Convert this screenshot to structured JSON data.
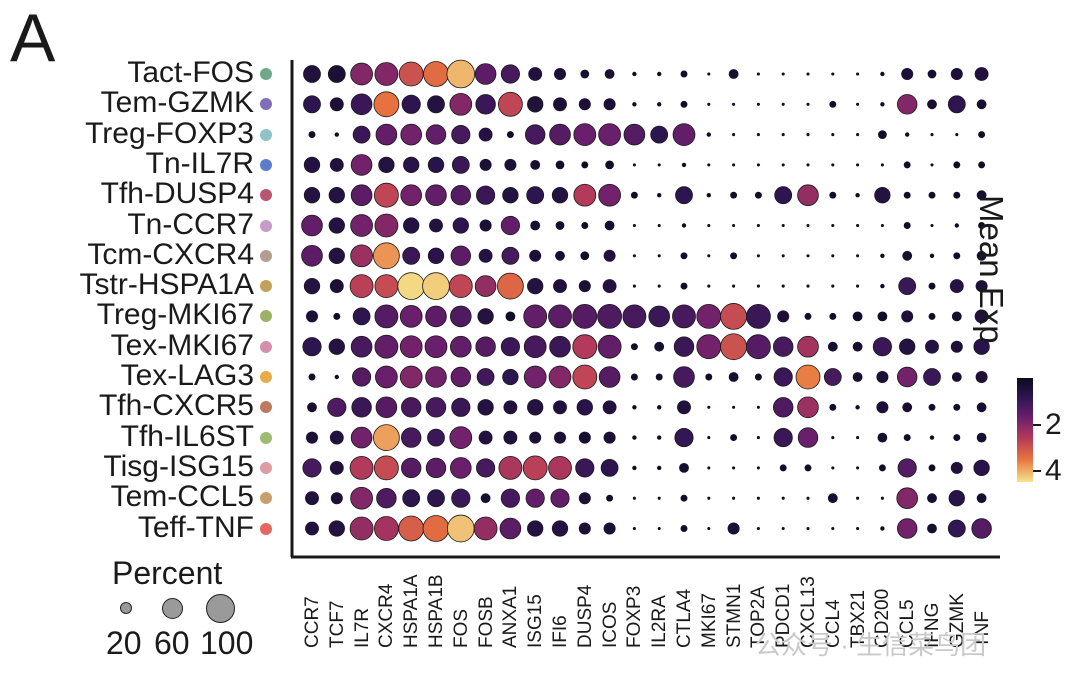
{
  "panel_label": "A",
  "legend": {
    "color_title": "Mean Exp",
    "color_ticks": [
      "2",
      "4"
    ],
    "size_title": "Percent",
    "size_ticks": [
      "20",
      "60",
      "100"
    ]
  },
  "watermark": "公众号 · 生信菜鸟团",
  "chart_data": {
    "type": "dotplot",
    "title": "",
    "genes": [
      "CCR7",
      "TCF7",
      "IL7R",
      "CXCR4",
      "HSPA1A",
      "HSPA1B",
      "FOS",
      "FOSB",
      "ANXA1",
      "ISG15",
      "IFI6",
      "DUSP4",
      "ICOS",
      "FOXP3",
      "IL2RA",
      "CTLA4",
      "MKI67",
      "STMN1",
      "TOP2A",
      "PDCD1",
      "CXCL13",
      "CCL4",
      "TBX21",
      "CD200",
      "CCL5",
      "IFNG",
      "GZMK",
      "TNF"
    ],
    "clusters": [
      {
        "name": "Tact-FOS",
        "color": "#6fa88b",
        "pct": [
          30,
          30,
          50,
          55,
          60,
          65,
          80,
          45,
          35,
          20,
          15,
          8,
          10,
          2,
          2,
          5,
          1,
          10,
          1,
          1,
          1,
          1,
          1,
          2,
          15,
          8,
          15,
          20
        ],
        "exp": [
          0.5,
          0.4,
          2.0,
          2.0,
          3.0,
          3.4,
          4.1,
          1.5,
          1.2,
          0.5,
          0.4,
          0.3,
          0.4,
          0.1,
          0.1,
          0.2,
          0.1,
          0.3,
          0.1,
          0.1,
          0.1,
          0.1,
          0.1,
          0.1,
          0.4,
          0.3,
          0.4,
          0.5
        ]
      },
      {
        "name": "Tem-GZMK",
        "color": "#7f6fb8",
        "pct": [
          30,
          20,
          45,
          65,
          35,
          30,
          50,
          40,
          60,
          25,
          20,
          15,
          15,
          2,
          2,
          5,
          1,
          1,
          1,
          1,
          1,
          5,
          1,
          2,
          40,
          10,
          30,
          10
        ],
        "exp": [
          0.8,
          0.4,
          1.0,
          3.5,
          0.8,
          0.6,
          2.0,
          1.0,
          2.8,
          0.5,
          0.4,
          0.4,
          0.4,
          0.1,
          0.1,
          0.2,
          0.1,
          0.1,
          0.1,
          0.1,
          0.1,
          0.2,
          0.1,
          0.1,
          2.0,
          0.3,
          0.8,
          0.3
        ]
      },
      {
        "name": "Treg-FOXP3",
        "color": "#8fc3c8",
        "pct": [
          5,
          2,
          30,
          45,
          45,
          40,
          35,
          20,
          5,
          40,
          45,
          50,
          50,
          45,
          30,
          50,
          2,
          1,
          1,
          1,
          1,
          1,
          1,
          8,
          2,
          1,
          1,
          5
        ],
        "exp": [
          0.2,
          0.1,
          1.0,
          1.6,
          1.8,
          1.6,
          1.2,
          0.6,
          0.1,
          1.2,
          1.4,
          1.7,
          1.7,
          1.4,
          0.8,
          1.6,
          0.1,
          0.1,
          0.1,
          0.1,
          0.1,
          0.1,
          0.1,
          0.2,
          0.1,
          0.1,
          0.1,
          0.2
        ]
      },
      {
        "name": "Tn-IL7R",
        "color": "#5f7ccc",
        "pct": [
          25,
          20,
          45,
          25,
          25,
          25,
          30,
          15,
          15,
          10,
          8,
          5,
          8,
          1,
          1,
          2,
          1,
          1,
          1,
          1,
          1,
          1,
          1,
          1,
          5,
          1,
          5,
          5
        ],
        "exp": [
          0.6,
          0.5,
          1.8,
          0.6,
          0.7,
          0.7,
          1.0,
          0.4,
          0.4,
          0.3,
          0.2,
          0.1,
          0.2,
          0.1,
          0.1,
          0.1,
          0.1,
          0.1,
          0.1,
          0.1,
          0.1,
          0.1,
          0.1,
          0.1,
          0.2,
          0.1,
          0.1,
          0.1
        ]
      },
      {
        "name": "Tfh-DUSP4",
        "color": "#b8566f",
        "pct": [
          25,
          25,
          45,
          60,
          45,
          45,
          40,
          35,
          25,
          30,
          25,
          50,
          50,
          5,
          2,
          30,
          2,
          5,
          5,
          30,
          45,
          5,
          2,
          25,
          5,
          5,
          5,
          10
        ],
        "exp": [
          0.6,
          0.6,
          1.5,
          2.8,
          1.8,
          1.6,
          1.4,
          1.0,
          0.6,
          0.8,
          0.6,
          2.6,
          1.8,
          0.2,
          0.1,
          0.8,
          0.1,
          0.2,
          0.2,
          0.8,
          2.2,
          0.2,
          0.1,
          0.6,
          0.2,
          0.2,
          0.2,
          0.3
        ]
      },
      {
        "name": "Tn-CCR7",
        "color": "#c69cc4",
        "pct": [
          45,
          25,
          50,
          55,
          25,
          20,
          25,
          15,
          35,
          10,
          8,
          5,
          10,
          1,
          1,
          2,
          1,
          1,
          1,
          1,
          1,
          1,
          1,
          1,
          5,
          1,
          2,
          5
        ],
        "exp": [
          1.6,
          0.6,
          1.8,
          2.0,
          0.6,
          0.5,
          0.8,
          0.4,
          1.6,
          0.3,
          0.2,
          0.1,
          0.3,
          0.1,
          0.1,
          0.1,
          0.1,
          0.1,
          0.1,
          0.1,
          0.1,
          0.1,
          0.1,
          0.1,
          0.2,
          0.1,
          0.1,
          0.1
        ]
      },
      {
        "name": "Tcm-CXCR4",
        "color": "#b49c8e",
        "pct": [
          45,
          25,
          50,
          70,
          30,
          25,
          40,
          20,
          30,
          15,
          10,
          8,
          15,
          1,
          1,
          5,
          1,
          5,
          1,
          1,
          1,
          1,
          1,
          2,
          10,
          2,
          5,
          10
        ],
        "exp": [
          1.5,
          0.6,
          2.3,
          3.8,
          1.0,
          0.7,
          1.5,
          0.6,
          1.2,
          0.4,
          0.3,
          0.2,
          0.5,
          0.1,
          0.1,
          0.2,
          0.1,
          0.2,
          0.1,
          0.1,
          0.1,
          0.1,
          0.1,
          0.1,
          0.3,
          0.1,
          0.2,
          0.3
        ]
      },
      {
        "name": "Tstr-HSPA1A",
        "color": "#c2a159",
        "pct": [
          25,
          20,
          55,
          55,
          75,
          75,
          55,
          45,
          70,
          25,
          20,
          15,
          20,
          1,
          1,
          5,
          1,
          1,
          1,
          1,
          1,
          1,
          1,
          2,
          30,
          5,
          20,
          15
        ],
        "exp": [
          0.6,
          0.4,
          2.7,
          2.9,
          4.4,
          4.3,
          2.8,
          2.2,
          3.3,
          0.6,
          0.5,
          0.4,
          0.6,
          0.1,
          0.1,
          0.2,
          0.1,
          0.1,
          0.1,
          0.1,
          0.1,
          0.1,
          0.1,
          0.1,
          1.0,
          0.2,
          0.6,
          0.4
        ]
      },
      {
        "name": "Treg-MKI67",
        "color": "#9db266",
        "pct": [
          15,
          5,
          30,
          55,
          50,
          45,
          45,
          25,
          10,
          55,
          55,
          60,
          60,
          55,
          45,
          55,
          60,
          70,
          60,
          15,
          5,
          5,
          10,
          10,
          15,
          5,
          10,
          20
        ],
        "exp": [
          0.4,
          0.2,
          0.8,
          1.4,
          1.7,
          1.5,
          1.3,
          0.6,
          0.2,
          1.6,
          1.5,
          1.4,
          1.3,
          1.2,
          1.0,
          1.2,
          1.8,
          2.9,
          1.0,
          0.4,
          0.2,
          0.2,
          0.2,
          0.2,
          0.4,
          0.2,
          0.3,
          0.5
        ]
      },
      {
        "name": "Tex-MKI67",
        "color": "#d58fae",
        "pct": [
          35,
          25,
          45,
          55,
          50,
          50,
          45,
          40,
          35,
          50,
          45,
          60,
          55,
          5,
          10,
          40,
          60,
          70,
          60,
          40,
          45,
          10,
          10,
          35,
          25,
          20,
          15,
          25
        ],
        "exp": [
          0.8,
          0.6,
          1.2,
          1.6,
          1.8,
          1.7,
          1.6,
          1.4,
          1.0,
          1.2,
          1.0,
          2.6,
          1.6,
          0.2,
          0.3,
          1.0,
          1.8,
          3.0,
          1.4,
          1.2,
          2.4,
          0.3,
          0.3,
          1.0,
          0.6,
          0.6,
          0.4,
          0.7
        ]
      },
      {
        "name": "Tex-LAG3",
        "color": "#e9ab47",
        "pct": [
          5,
          2,
          35,
          50,
          50,
          45,
          40,
          30,
          25,
          50,
          50,
          60,
          45,
          5,
          5,
          45,
          5,
          10,
          5,
          35,
          60,
          30,
          10,
          15,
          40,
          30,
          10,
          15
        ],
        "exp": [
          0.2,
          0.1,
          1.4,
          1.7,
          2.0,
          1.8,
          1.6,
          1.1,
          0.8,
          1.8,
          2.0,
          2.8,
          1.4,
          0.2,
          0.2,
          1.2,
          0.2,
          0.3,
          0.2,
          1.0,
          3.6,
          1.2,
          0.3,
          0.4,
          1.8,
          1.0,
          0.3,
          0.4
        ]
      },
      {
        "name": "Tfh-CXCR5",
        "color": "#bd7a5f",
        "pct": [
          10,
          35,
          40,
          45,
          40,
          40,
          35,
          25,
          20,
          25,
          20,
          25,
          20,
          2,
          2,
          20,
          1,
          1,
          1,
          40,
          45,
          5,
          2,
          15,
          10,
          5,
          5,
          10
        ],
        "exp": [
          0.3,
          1.3,
          1.0,
          1.4,
          1.2,
          1.2,
          1.0,
          0.6,
          0.5,
          0.6,
          0.5,
          0.7,
          0.5,
          0.1,
          0.1,
          0.5,
          0.1,
          0.1,
          0.1,
          1.3,
          2.3,
          0.2,
          0.1,
          0.4,
          0.3,
          0.2,
          0.2,
          0.3
        ]
      },
      {
        "name": "Tfh-IL6ST",
        "color": "#9fba72",
        "pct": [
          15,
          20,
          45,
          70,
          40,
          30,
          50,
          20,
          20,
          15,
          15,
          15,
          15,
          2,
          2,
          35,
          1,
          5,
          1,
          35,
          40,
          1,
          1,
          10,
          5,
          2,
          5,
          10
        ],
        "exp": [
          0.4,
          0.5,
          1.8,
          3.9,
          1.2,
          1.0,
          1.8,
          0.5,
          0.5,
          0.4,
          0.4,
          0.3,
          0.4,
          0.1,
          0.1,
          0.9,
          0.1,
          0.2,
          0.1,
          1.0,
          1.7,
          0.1,
          0.1,
          0.3,
          0.2,
          0.1,
          0.2,
          0.3
        ]
      },
      {
        "name": "Tisg-ISG15",
        "color": "#dc9da4",
        "pct": [
          35,
          20,
          55,
          60,
          40,
          40,
          45,
          35,
          55,
          60,
          55,
          35,
          30,
          2,
          2,
          10,
          1,
          1,
          1,
          5,
          5,
          1,
          1,
          5,
          35,
          5,
          15,
          25
        ],
        "exp": [
          1.2,
          0.5,
          2.6,
          2.9,
          1.4,
          1.5,
          1.7,
          1.2,
          2.5,
          2.7,
          2.5,
          1.0,
          0.8,
          0.1,
          0.1,
          0.3,
          0.1,
          0.1,
          0.1,
          0.2,
          0.2,
          0.1,
          0.1,
          0.2,
          1.4,
          0.2,
          0.5,
          0.7
        ]
      },
      {
        "name": "Tem-CCL5",
        "color": "#c9a06b",
        "pct": [
          20,
          15,
          50,
          40,
          30,
          30,
          35,
          10,
          35,
          35,
          35,
          15,
          5,
          1,
          1,
          5,
          1,
          1,
          1,
          1,
          1,
          10,
          1,
          1,
          45,
          10,
          25,
          10
        ],
        "exp": [
          0.5,
          0.4,
          2.0,
          1.3,
          0.8,
          0.8,
          1.0,
          0.3,
          1.2,
          1.6,
          1.6,
          0.4,
          0.2,
          0.1,
          0.1,
          0.2,
          0.1,
          0.1,
          0.1,
          0.1,
          0.1,
          0.3,
          0.1,
          0.1,
          2.0,
          0.3,
          0.7,
          0.3
        ]
      },
      {
        "name": "Teff-TNF",
        "color": "#e3675f",
        "pct": [
          20,
          25,
          55,
          60,
          65,
          70,
          75,
          55,
          45,
          25,
          25,
          15,
          15,
          1,
          1,
          5,
          1,
          15,
          1,
          1,
          1,
          1,
          1,
          2,
          40,
          10,
          30,
          40
        ],
        "exp": [
          0.5,
          0.6,
          2.2,
          2.4,
          3.2,
          3.4,
          4.2,
          2.2,
          1.5,
          0.6,
          0.6,
          0.4,
          0.4,
          0.1,
          0.1,
          0.2,
          0.1,
          0.4,
          0.1,
          0.1,
          0.1,
          0.1,
          0.1,
          0.1,
          1.8,
          0.3,
          0.9,
          1.4
        ]
      }
    ],
    "xlabel": "",
    "ylabel": "",
    "color_legend_title": "Mean Exp",
    "color_range": [
      0,
      4.5
    ],
    "size_legend_title": "Percent",
    "size_range": [
      0,
      100
    ]
  }
}
